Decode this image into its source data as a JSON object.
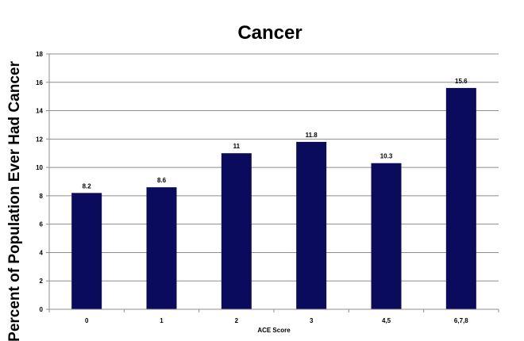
{
  "colors": {
    "bar": "#0b0b5e",
    "grid": "#8c8c8c",
    "axis": "#8c8c8c",
    "background": "#ffffff"
  },
  "chart_data": {
    "type": "bar",
    "title": "Cancer",
    "xlabel": "ACE Score",
    "ylabel": "Percent of Population Ever Had Cancer",
    "categories": [
      "0",
      "1",
      "2",
      "3",
      "4,5",
      "6,7,8"
    ],
    "values": [
      8.2,
      8.6,
      11,
      11.8,
      10.3,
      15.6
    ],
    "data_labels": [
      "8.2",
      "8.6",
      "11",
      "11.8",
      "10.3",
      "15.6"
    ],
    "ylim": [
      0,
      18
    ],
    "yticks": [
      "0",
      "2",
      "4",
      "6",
      "8",
      "10",
      "12",
      "14",
      "16",
      "18"
    ],
    "grid": true,
    "legend": "none"
  }
}
